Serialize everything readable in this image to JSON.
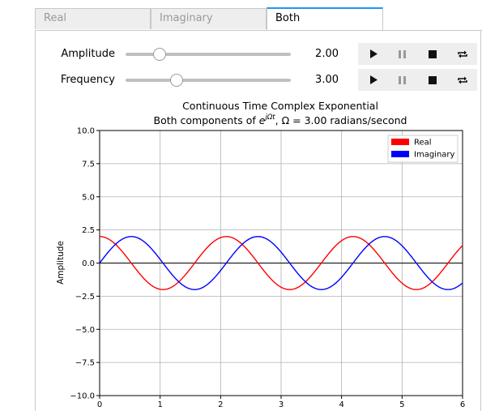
{
  "tabs": [
    {
      "label": "Real",
      "active": false
    },
    {
      "label": "Imaginary",
      "active": false
    },
    {
      "label": "Both",
      "active": true
    }
  ],
  "sliders": [
    {
      "label": "Amplitude",
      "value_text": "2.00",
      "value": 2.0,
      "min": 0.0,
      "max": 10.0
    },
    {
      "label": "Frequency",
      "value_text": "3.00",
      "value": 3.0,
      "min": 0.0,
      "max": 10.0
    }
  ],
  "playback_controls": [
    "play-icon",
    "pause-icon",
    "stop-icon",
    "loop-icon"
  ],
  "colors": {
    "real": "#ff0000",
    "imaginary": "#0000ff",
    "tab_accent": "#2196f3"
  },
  "chart_data": {
    "type": "line",
    "title": "Continuous Time Complex Exponential",
    "subtitle_prefix": "Both components of ",
    "subtitle_e": "e",
    "subtitle_exp": "jΩt",
    "subtitle_suffix": ", Ω =  3.00 radians/second",
    "xlabel": "",
    "ylabel": "Amplitude",
    "xlim": [
      0,
      6
    ],
    "ylim": [
      -10,
      10
    ],
    "x_ticks": [
      "0",
      "1",
      "2",
      "3",
      "4",
      "5",
      "6"
    ],
    "y_ticks": [
      "10.0",
      "7.5",
      "5.0",
      "2.5",
      "0.0",
      "−2.5",
      "−5.0",
      "−7.5",
      "−10.0"
    ],
    "grid": true,
    "legend_position": "top-right",
    "amplitude": 2.0,
    "omega": 3.0,
    "series": [
      {
        "name": "Real",
        "function": "A*cos(Ωt)",
        "color": "#ff0000"
      },
      {
        "name": "Imaginary",
        "function": "A*sin(Ωt)",
        "color": "#0000ff"
      }
    ]
  }
}
